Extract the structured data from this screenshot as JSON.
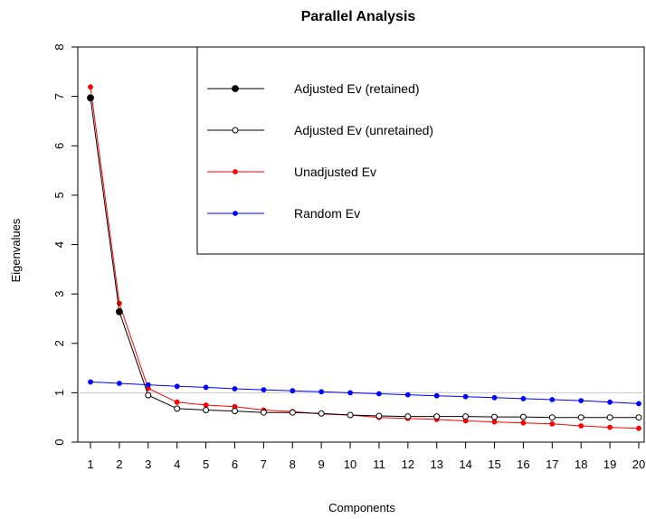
{
  "chart_data": {
    "type": "line",
    "title": "Parallel Analysis",
    "xlabel": "Components",
    "ylabel": "Eigenvalues",
    "x": [
      1,
      2,
      3,
      4,
      5,
      6,
      7,
      8,
      9,
      10,
      11,
      12,
      13,
      14,
      15,
      16,
      17,
      18,
      19,
      20
    ],
    "xlim": [
      1,
      20
    ],
    "ylim": [
      0,
      8
    ],
    "x_ticks": [
      1,
      2,
      3,
      4,
      5,
      6,
      7,
      8,
      9,
      10,
      11,
      12,
      13,
      14,
      15,
      16,
      17,
      18,
      19,
      20
    ],
    "y_ticks": [
      0,
      1,
      2,
      3,
      4,
      5,
      6,
      7,
      8
    ],
    "reference_line": {
      "y": 1,
      "color": "#c8c8c8"
    },
    "series": [
      {
        "name": "Adjusted Ev (retained)",
        "color": "#000000",
        "marker": "filled-circle",
        "values": [
          6.97,
          2.64,
          0.95,
          0.68,
          0.65,
          0.63,
          0.6,
          0.6,
          0.58,
          0.55,
          0.53,
          0.52,
          0.52,
          0.52,
          0.51,
          0.51,
          0.5,
          0.5,
          0.5,
          0.5
        ]
      },
      {
        "name": "Adjusted Ev (unretained)",
        "color": "#000000",
        "marker": "open-circle",
        "values": [
          6.97,
          2.64,
          0.95,
          0.68,
          0.65,
          0.63,
          0.6,
          0.6,
          0.58,
          0.55,
          0.53,
          0.52,
          0.52,
          0.52,
          0.51,
          0.51,
          0.5,
          0.5,
          0.5,
          0.5
        ]
      },
      {
        "name": "Unadjusted Ev",
        "color": "#ff0000",
        "marker": "filled-circle",
        "values": [
          7.19,
          2.81,
          1.09,
          0.81,
          0.75,
          0.72,
          0.65,
          0.62,
          0.57,
          0.55,
          0.5,
          0.48,
          0.46,
          0.43,
          0.41,
          0.39,
          0.37,
          0.33,
          0.3,
          0.28
        ]
      },
      {
        "name": "Random Ev",
        "color": "#0000ff",
        "marker": "filled-circle",
        "values": [
          1.22,
          1.19,
          1.16,
          1.13,
          1.11,
          1.08,
          1.06,
          1.04,
          1.02,
          1.0,
          0.98,
          0.96,
          0.94,
          0.92,
          0.9,
          0.88,
          0.86,
          0.84,
          0.81,
          0.78
        ]
      }
    ],
    "legend": {
      "position": "top-right",
      "entries": [
        "Adjusted Ev (retained)",
        "Adjusted Ev (unretained)",
        "Unadjusted Ev",
        "Random Ev"
      ]
    },
    "grid": false
  }
}
